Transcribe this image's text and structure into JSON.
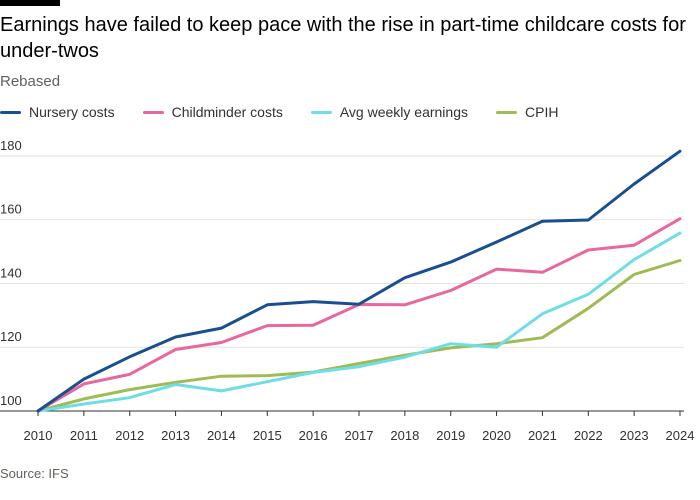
{
  "header": {
    "title": "Earnings have failed to keep pace with the rise in part-time childcare costs for under-twos",
    "subtitle": "Rebased"
  },
  "footer": {
    "source": "Source: IFS"
  },
  "colors": {
    "nursery": "#1a4f8f",
    "childminder": "#e8679d",
    "earnings": "#6fdde6",
    "cpih": "#9fbb54",
    "gridline": "#e6e2df",
    "axis": "#33302e"
  },
  "chart_data": {
    "type": "line",
    "title": "Earnings have failed to keep pace with the rise in part-time childcare costs for under-twos",
    "subtitle": "Rebased",
    "xlabel": "",
    "ylabel": "",
    "x": [
      2010,
      2011,
      2012,
      2013,
      2014,
      2015,
      2016,
      2017,
      2018,
      2019,
      2020,
      2021,
      2022,
      2023,
      2024
    ],
    "xticks": [
      "2010",
      "2011",
      "2012",
      "2013",
      "2014",
      "2015",
      "2016",
      "2017",
      "2018",
      "2019",
      "2020",
      "2021",
      "2022",
      "2023",
      "2024"
    ],
    "yticks": [
      100,
      120,
      140,
      160,
      180
    ],
    "ylim": [
      100,
      185
    ],
    "grid": true,
    "legend_position": "top",
    "series": [
      {
        "key": "nursery",
        "name": "Nursery costs",
        "values": [
          100,
          110,
          117,
          123.2,
          126,
          133.3,
          134.3,
          133.5,
          141.8,
          146.7,
          153,
          159.5,
          159.9,
          171.2,
          181.5
        ]
      },
      {
        "key": "childminder",
        "name": "Childminder costs",
        "values": [
          100,
          108.5,
          111.5,
          119.3,
          121.5,
          126.8,
          126.9,
          133.4,
          133.3,
          137.8,
          144.5,
          143.5,
          150.5,
          152,
          160.3
        ]
      },
      {
        "key": "earnings",
        "name": "Avg weekly earnings",
        "values": [
          100,
          102.2,
          104.2,
          108.3,
          106.3,
          109.2,
          112.1,
          113.9,
          116.9,
          121.1,
          120,
          130.5,
          136.6,
          147.5,
          155.8
        ]
      },
      {
        "key": "cpih",
        "name": "CPIH",
        "values": [
          100,
          103.8,
          106.7,
          109,
          110.9,
          111.1,
          112.2,
          114.9,
          117.5,
          119.8,
          121.1,
          123,
          132.2,
          142.8,
          147.2
        ]
      }
    ],
    "source": "Source: IFS"
  }
}
